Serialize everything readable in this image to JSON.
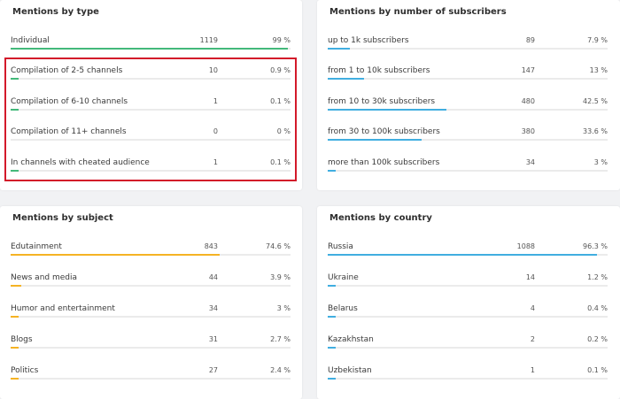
{
  "colors": {
    "type_bar": "#43b97a",
    "subscribers_bar": "#41aee0",
    "subject_bar": "#f5b324",
    "country_bar": "#41aee0",
    "highlight": "#d3192a"
  },
  "by_type": {
    "title": "Mentions by type",
    "rows": [
      {
        "label": "Individual",
        "count": "1119",
        "pct": "99 %",
        "fill": 0.99
      },
      {
        "label": "Compilation of 2-5 channels",
        "count": "10",
        "pct": "0.9 %",
        "fill": 0.009
      },
      {
        "label": "Compilation of 6-10 channels",
        "count": "1",
        "pct": "0.1 %",
        "fill": 0.001
      },
      {
        "label": "Compilation of 11+ channels",
        "count": "0",
        "pct": "0 %",
        "fill": 0
      },
      {
        "label": "In channels with cheated audience",
        "count": "1",
        "pct": "0.1 %",
        "fill": 0.001
      }
    ]
  },
  "by_subscribers": {
    "title": "Mentions by number of subscribers",
    "rows": [
      {
        "label": "up to 1k subscribers",
        "count": "89",
        "pct": "7.9 %",
        "fill": 0.079
      },
      {
        "label": "from 1 to 10k subscribers",
        "count": "147",
        "pct": "13 %",
        "fill": 0.13
      },
      {
        "label": "from 10 to 30k subscribers",
        "count": "480",
        "pct": "42.5 %",
        "fill": 0.425
      },
      {
        "label": "from 30 to 100k subscribers",
        "count": "380",
        "pct": "33.6 %",
        "fill": 0.336
      },
      {
        "label": "more than 100k subscribers",
        "count": "34",
        "pct": "3 %",
        "fill": 0.03
      }
    ]
  },
  "by_subject": {
    "title": "Mentions by subject",
    "rows": [
      {
        "label": "Edutainment",
        "count": "843",
        "pct": "74.6 %",
        "fill": 0.746
      },
      {
        "label": "News and media",
        "count": "44",
        "pct": "3.9 %",
        "fill": 0.039
      },
      {
        "label": "Humor and entertainment",
        "count": "34",
        "pct": "3 %",
        "fill": 0.03
      },
      {
        "label": "Blogs",
        "count": "31",
        "pct": "2.7 %",
        "fill": 0.027
      },
      {
        "label": "Politics",
        "count": "27",
        "pct": "2.4 %",
        "fill": 0.024
      }
    ]
  },
  "by_country": {
    "title": "Mentions by country",
    "rows": [
      {
        "label": "Russia",
        "count": "1088",
        "pct": "96.3 %",
        "fill": 0.963
      },
      {
        "label": "Ukraine",
        "count": "14",
        "pct": "1.2 %",
        "fill": 0.012
      },
      {
        "label": "Belarus",
        "count": "4",
        "pct": "0.4 %",
        "fill": 0.004
      },
      {
        "label": "Kazakhstan",
        "count": "2",
        "pct": "0.2 %",
        "fill": 0.002
      },
      {
        "label": "Uzbekistan",
        "count": "1",
        "pct": "0.1 %",
        "fill": 0.001
      }
    ]
  }
}
